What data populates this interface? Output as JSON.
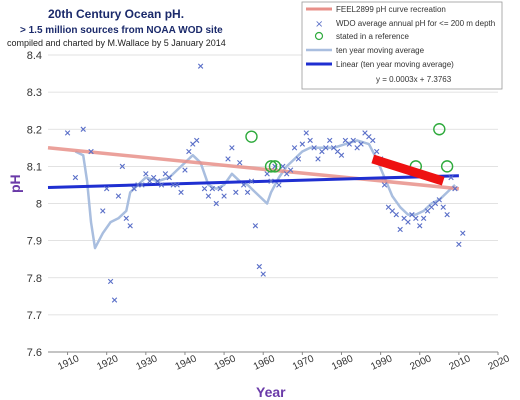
{
  "chart_data": {
    "type": "scatter",
    "title": "20th Century Ocean pH.",
    "subtitle": "> 1.5 million sources from NOAA WOD site",
    "credit": "compiled and charted by M.Wallace by 5 January 2014",
    "xlabel": "Year",
    "ylabel": "pH",
    "xlim": [
      1905,
      2020
    ],
    "ylim": [
      7.6,
      8.4
    ],
    "x_ticks": [
      1910,
      1920,
      1930,
      1940,
      1950,
      1960,
      1970,
      1980,
      1990,
      2000,
      2010,
      2020
    ],
    "y_ticks": [
      "7.6",
      "7.7",
      "7.8",
      "7.9",
      "8",
      "8.1",
      "8.2",
      "8.3",
      "8.4"
    ],
    "grid": "horizontal",
    "legend": {
      "placement": "top-right",
      "entries": [
        {
          "label": "FEEL2899 pH curve recreation",
          "color": "#e8908a",
          "style": "line"
        },
        {
          "label": "WDO average annual pH for <= 200 m depth",
          "color": "#5a6fc8",
          "style": "x-marker"
        },
        {
          "label": "stated in a reference",
          "color": "#2eaa3c",
          "style": "circle"
        },
        {
          "label": "ten year moving average",
          "color": "#a9bedf",
          "style": "line"
        },
        {
          "label": "Linear (ten year moving average)",
          "color": "#1f2fd1",
          "style": "line"
        }
      ]
    },
    "equation": "y = 0.0003x + 7.3763",
    "series": [
      {
        "name": "WDO average annual pH for <= 200 m depth",
        "type": "scatter",
        "color": "#5a6fc8",
        "points": [
          [
            1910,
            8.19
          ],
          [
            1912,
            8.07
          ],
          [
            1914,
            8.2
          ],
          [
            1916,
            8.14
          ],
          [
            1919,
            7.98
          ],
          [
            1920,
            8.04
          ],
          [
            1921,
            7.79
          ],
          [
            1922,
            7.74
          ],
          [
            1923,
            8.02
          ],
          [
            1924,
            8.1
          ],
          [
            1925,
            7.96
          ],
          [
            1926,
            7.94
          ],
          [
            1927,
            8.04
          ],
          [
            1928,
            8.05
          ],
          [
            1929,
            8.05
          ],
          [
            1930,
            8.08
          ],
          [
            1931,
            8.06
          ],
          [
            1932,
            8.07
          ],
          [
            1933,
            8.06
          ],
          [
            1934,
            8.05
          ],
          [
            1935,
            8.08
          ],
          [
            1936,
            8.07
          ],
          [
            1937,
            8.05
          ],
          [
            1938,
            8.05
          ],
          [
            1939,
            8.03
          ],
          [
            1940,
            8.09
          ],
          [
            1941,
            8.14
          ],
          [
            1942,
            8.16
          ],
          [
            1943,
            8.17
          ],
          [
            1944,
            8.37
          ],
          [
            1945,
            8.04
          ],
          [
            1946,
            8.02
          ],
          [
            1947,
            8.04
          ],
          [
            1948,
            8.0
          ],
          [
            1949,
            8.04
          ],
          [
            1950,
            8.02
          ],
          [
            1951,
            8.12
          ],
          [
            1952,
            8.15
          ],
          [
            1953,
            8.03
          ],
          [
            1954,
            8.11
          ],
          [
            1955,
            8.05
          ],
          [
            1956,
            8.03
          ],
          [
            1957,
            8.06
          ],
          [
            1958,
            7.94
          ],
          [
            1959,
            7.83
          ],
          [
            1960,
            7.81
          ],
          [
            1961,
            8.08
          ],
          [
            1962,
            8.06
          ],
          [
            1963,
            8.1
          ],
          [
            1964,
            8.05
          ],
          [
            1965,
            8.1
          ],
          [
            1966,
            8.08
          ],
          [
            1967,
            8.09
          ],
          [
            1968,
            8.15
          ],
          [
            1969,
            8.12
          ],
          [
            1970,
            8.16
          ],
          [
            1971,
            8.19
          ],
          [
            1972,
            8.17
          ],
          [
            1973,
            8.15
          ],
          [
            1974,
            8.12
          ],
          [
            1975,
            8.14
          ],
          [
            1976,
            8.15
          ],
          [
            1977,
            8.17
          ],
          [
            1978,
            8.15
          ],
          [
            1979,
            8.14
          ],
          [
            1980,
            8.13
          ],
          [
            1981,
            8.17
          ],
          [
            1982,
            8.16
          ],
          [
            1983,
            8.17
          ],
          [
            1984,
            8.15
          ],
          [
            1985,
            8.16
          ],
          [
            1986,
            8.19
          ],
          [
            1987,
            8.18
          ],
          [
            1988,
            8.17
          ],
          [
            1989,
            8.14
          ],
          [
            1990,
            8.12
          ],
          [
            1991,
            8.05
          ],
          [
            1992,
            7.99
          ],
          [
            1993,
            7.98
          ],
          [
            1994,
            7.97
          ],
          [
            1995,
            7.93
          ],
          [
            1996,
            7.96
          ],
          [
            1997,
            7.95
          ],
          [
            1998,
            7.97
          ],
          [
            1999,
            7.96
          ],
          [
            2000,
            7.94
          ],
          [
            2001,
            7.96
          ],
          [
            2002,
            7.98
          ],
          [
            2003,
            7.99
          ],
          [
            2004,
            8.0
          ],
          [
            2005,
            8.01
          ],
          [
            2006,
            7.99
          ],
          [
            2007,
            7.97
          ],
          [
            2008,
            8.07
          ],
          [
            2009,
            8.04
          ],
          [
            2010,
            7.89
          ],
          [
            2011,
            7.92
          ]
        ]
      },
      {
        "name": "ten year moving average",
        "type": "line",
        "color": "#a9bedf",
        "points": [
          [
            1912,
            8.14
          ],
          [
            1914,
            8.13
          ],
          [
            1915,
            8.06
          ],
          [
            1916,
            7.95
          ],
          [
            1917,
            7.88
          ],
          [
            1919,
            7.92
          ],
          [
            1921,
            7.95
          ],
          [
            1923,
            7.96
          ],
          [
            1925,
            7.98
          ],
          [
            1926,
            8.03
          ],
          [
            1928,
            8.05
          ],
          [
            1930,
            8.07
          ],
          [
            1933,
            8.06
          ],
          [
            1936,
            8.07
          ],
          [
            1939,
            8.1
          ],
          [
            1942,
            8.13
          ],
          [
            1944,
            8.11
          ],
          [
            1946,
            8.05
          ],
          [
            1948,
            8.04
          ],
          [
            1950,
            8.05
          ],
          [
            1952,
            8.08
          ],
          [
            1954,
            8.06
          ],
          [
            1956,
            8.05
          ],
          [
            1958,
            8.03
          ],
          [
            1960,
            8.01
          ],
          [
            1961,
            8.0
          ],
          [
            1962,
            8.03
          ],
          [
            1964,
            8.07
          ],
          [
            1966,
            8.1
          ],
          [
            1968,
            8.12
          ],
          [
            1970,
            8.14
          ],
          [
            1972,
            8.15
          ],
          [
            1975,
            8.15
          ],
          [
            1978,
            8.15
          ],
          [
            1981,
            8.16
          ],
          [
            1984,
            8.17
          ],
          [
            1987,
            8.16
          ],
          [
            1989,
            8.12
          ],
          [
            1991,
            8.07
          ],
          [
            1993,
            8.02
          ],
          [
            1995,
            7.99
          ],
          [
            1997,
            7.97
          ],
          [
            1999,
            7.97
          ],
          [
            2001,
            7.98
          ],
          [
            2003,
            8.0
          ],
          [
            2005,
            8.01
          ],
          [
            2007,
            8.03
          ],
          [
            2009,
            8.05
          ]
        ]
      },
      {
        "name": "Linear (ten year moving average)",
        "type": "line",
        "color": "#1f2fd1",
        "points": [
          [
            1905,
            8.043
          ],
          [
            2010,
            8.075
          ]
        ]
      },
      {
        "name": "FEEL2899 pH curve recreation",
        "type": "line",
        "color": "#e8908a",
        "points": [
          [
            1905,
            8.15
          ],
          [
            2010,
            8.04
          ]
        ]
      },
      {
        "name": "",
        "type": "thick-segment",
        "color": "#ee1111",
        "points": [
          [
            1988,
            8.12
          ],
          [
            2006,
            8.06
          ]
        ]
      },
      {
        "name": "stated in a reference",
        "type": "circle",
        "color": "#2eaa3c",
        "points": [
          [
            1957,
            8.18
          ],
          [
            1962,
            8.1
          ],
          [
            1963,
            8.1
          ],
          [
            1999,
            8.1
          ],
          [
            2005,
            8.2
          ],
          [
            2007,
            8.1
          ]
        ]
      }
    ]
  }
}
